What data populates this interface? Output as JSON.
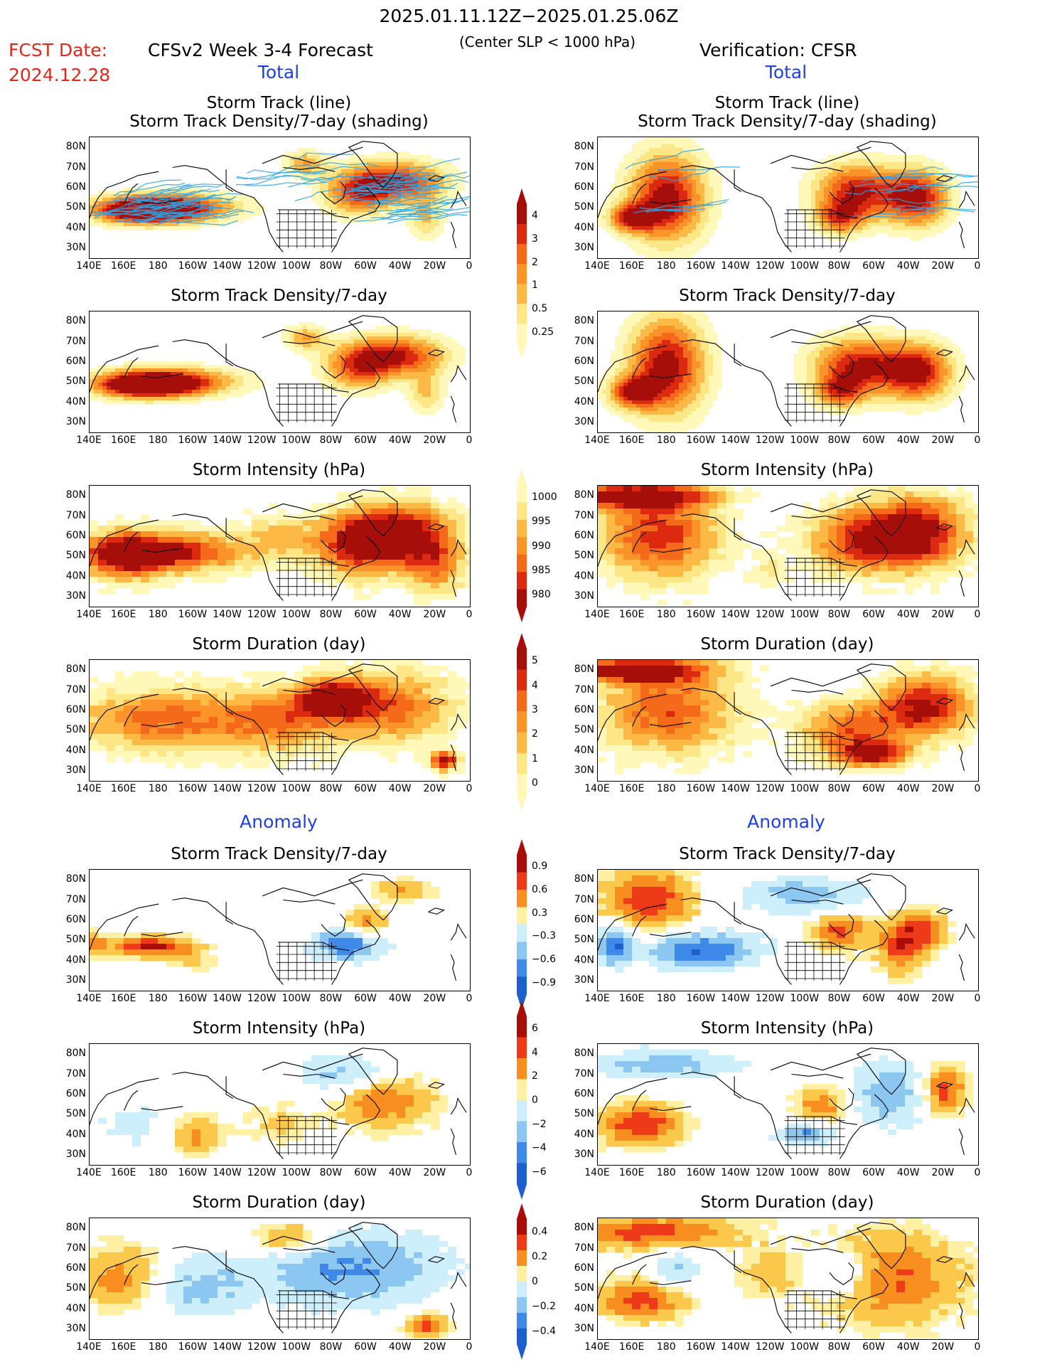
{
  "header": {
    "date_range": "2025.01.11.12Z−2025.01.25.06Z",
    "subtitle": "(Center SLP < 1000 hPa)",
    "fcst_label": "FCST Date:",
    "fcst_date": "2024.12.28",
    "forecast_title": "CFSv2 Week 3-4 Forecast",
    "verification_title": "Verification: CFSR",
    "total_left": "Total",
    "total_right": "Total",
    "anomaly_left": "Anomaly",
    "anomaly_right": "Anomaly"
  },
  "panel_titles": {
    "track_line": "Storm Track (line)",
    "track_shading": "Storm Track Density/7-day (shading)",
    "density": "Storm Track Density/7-day",
    "intensity": "Storm Intensity (hPa)",
    "duration": "Storm Duration (day)"
  },
  "axes": {
    "lat_labels": [
      "80N",
      "70N",
      "60N",
      "50N",
      "40N",
      "30N"
    ],
    "lon_labels": [
      "140E",
      "160E",
      "180",
      "160W",
      "140W",
      "120W",
      "100W",
      "80W",
      "60W",
      "40W",
      "20W",
      "0"
    ]
  },
  "colorbars": {
    "density_total": [
      "4",
      "3",
      "2",
      "1",
      "0.5",
      "0.25"
    ],
    "intensity_total": [
      "1000",
      "995",
      "990",
      "985",
      "980"
    ],
    "duration_total": [
      "5",
      "4",
      "3",
      "2",
      "1",
      "0"
    ],
    "density_anom": [
      "0.9",
      "0.6",
      "0.3",
      "−0.3",
      "−0.6",
      "−0.9"
    ],
    "intensity_anom": [
      "6",
      "4",
      "2",
      "0",
      "−2",
      "−4",
      "−6"
    ],
    "duration_anom": [
      "0.4",
      "0.2",
      "0",
      "−0.2",
      "−0.4"
    ]
  },
  "colors": {
    "total_scale": [
      "#fff8b8",
      "#fde686",
      "#fdb946",
      "#fb9428",
      "#f46a1a",
      "#dc2a10",
      "#a60e0a"
    ],
    "anom_scale": [
      "#1e5fd0",
      "#3f8ae8",
      "#8cc7f2",
      "#cdeefb",
      "#ffffff",
      "#fff0a4",
      "#fbc84c",
      "#f88d20",
      "#ee3a18",
      "#a80d0a"
    ],
    "storm_track_line": "#2ea6e8",
    "title_red": "#e8251b",
    "section_blue": "#1f3fe6"
  }
}
